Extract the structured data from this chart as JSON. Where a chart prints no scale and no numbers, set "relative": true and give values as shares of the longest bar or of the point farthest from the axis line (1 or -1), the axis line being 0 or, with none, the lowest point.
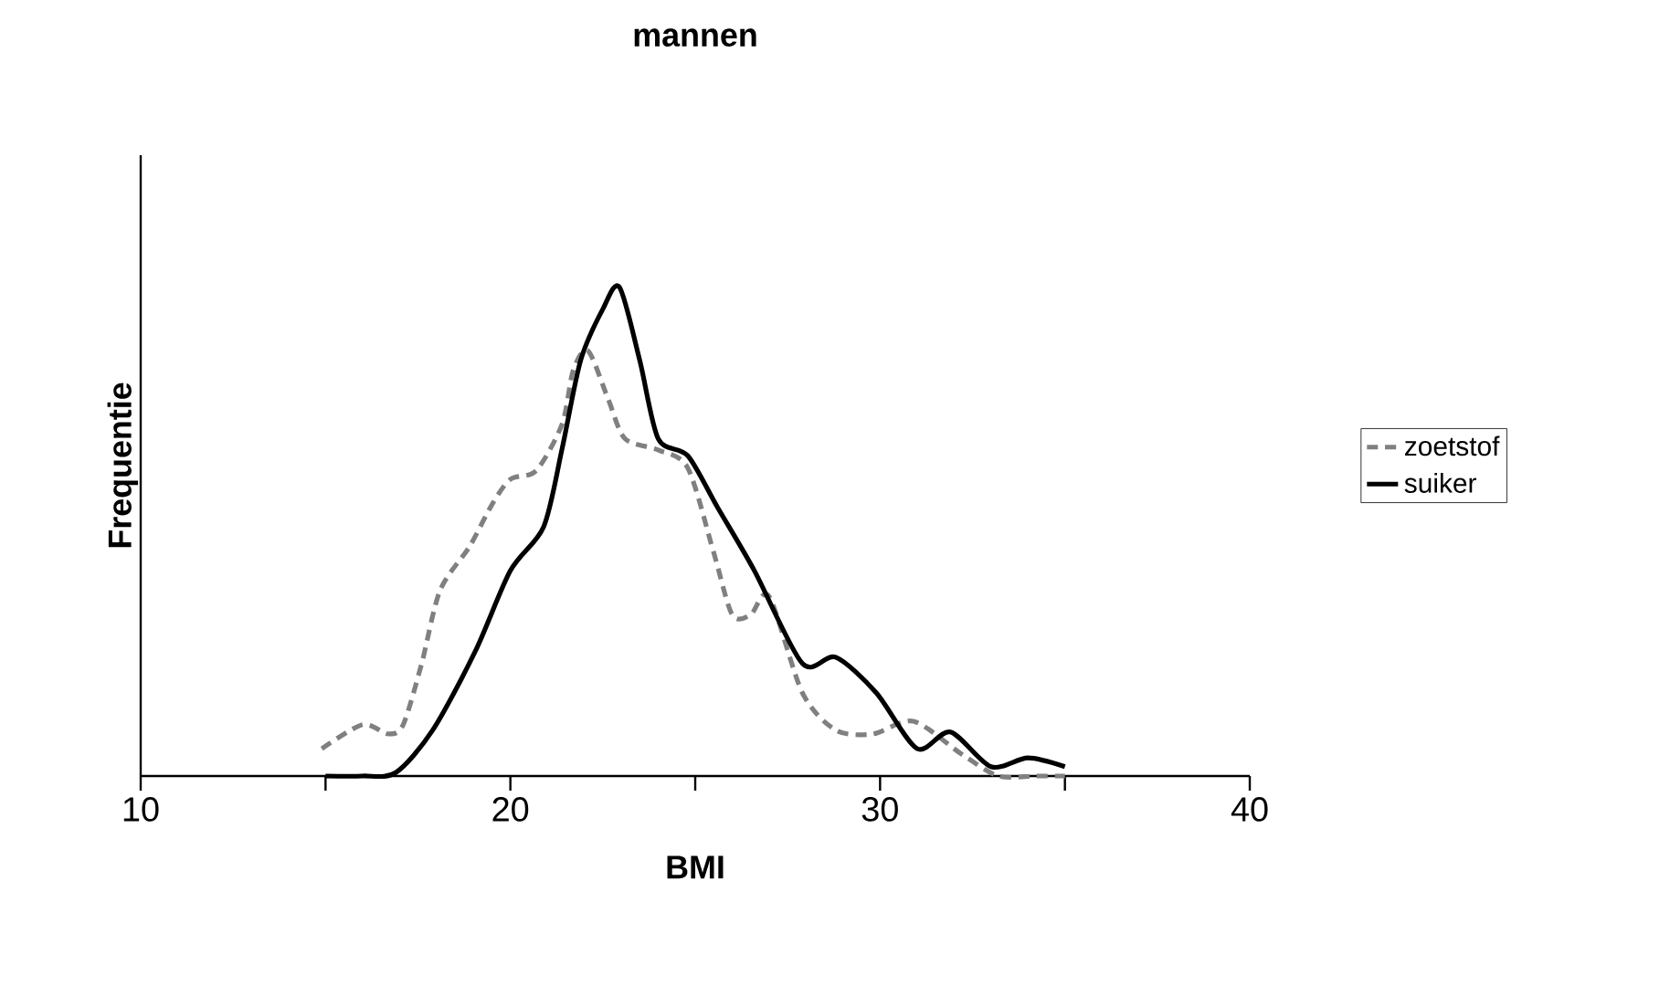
{
  "chart_data": {
    "type": "line",
    "title": "mannen",
    "xlabel": "BMI",
    "ylabel": "Frequentie",
    "relative": true,
    "xlim": [
      10,
      40
    ],
    "xticks": [
      10,
      {
        "value": 15,
        "label": null
      },
      20,
      {
        "value": 25,
        "label": null
      },
      30,
      {
        "value": 35,
        "label": null
      },
      40
    ],
    "legend": "right",
    "grid": false,
    "marker": "none",
    "series": [
      {
        "name": "zoetstof",
        "color": "#808080",
        "line_style": "dashed",
        "x": [
          14.9,
          16.0,
          16.7,
          17.1,
          17.6,
          18.1,
          18.9,
          19.5,
          20.0,
          20.7,
          21.4,
          21.7,
          22.1,
          22.65,
          23.1,
          24.0,
          24.8,
          25.5,
          26.0,
          26.5,
          27.0,
          27.9,
          28.8,
          29.8,
          30.9,
          32.2,
          33.2,
          34.2,
          35.0
        ],
        "values": [
          0.056,
          0.105,
          0.086,
          0.105,
          0.23,
          0.38,
          0.47,
          0.555,
          0.607,
          0.625,
          0.72,
          0.83,
          0.87,
          0.77,
          0.69,
          0.667,
          0.63,
          0.457,
          0.33,
          0.33,
          0.367,
          0.17,
          0.094,
          0.086,
          0.112,
          0.045,
          0.0,
          0.0,
          0.0
        ]
      },
      {
        "name": "suiker",
        "color": "#000000",
        "line_style": "solid",
        "x": [
          15.0,
          16.0,
          16.9,
          17.9,
          19.05,
          20.0,
          20.9,
          21.4,
          21.9,
          22.5,
          22.95,
          23.5,
          24.0,
          24.8,
          25.6,
          26.6,
          27.9,
          28.8,
          29.9,
          31.0,
          31.9,
          33.0,
          34.0,
          35.0
        ],
        "values": [
          0.0,
          0.0,
          0.007,
          0.094,
          0.255,
          0.42,
          0.51,
          0.67,
          0.85,
          0.955,
          1.0,
          0.85,
          0.69,
          0.655,
          0.55,
          0.42,
          0.23,
          0.243,
          0.17,
          0.056,
          0.09,
          0.019,
          0.037,
          0.019
        ]
      }
    ]
  }
}
